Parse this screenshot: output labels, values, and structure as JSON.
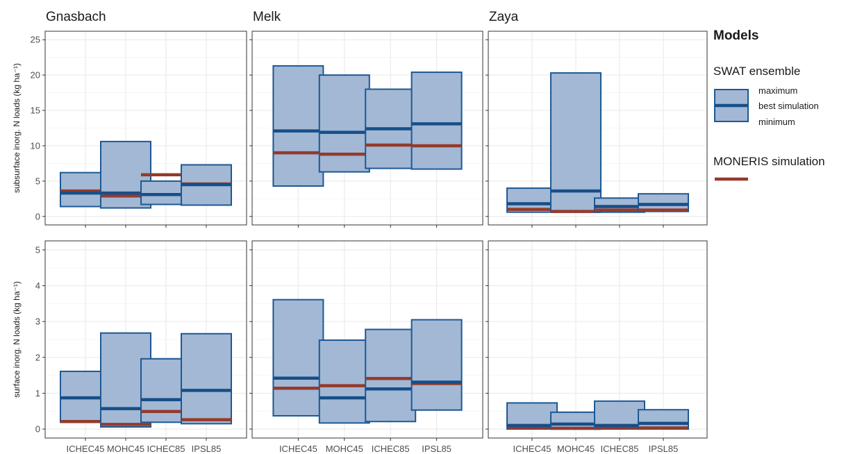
{
  "chart_data": {
    "type": "bar",
    "categories": [
      "ICHEC45",
      "MOHC45",
      "ICHEC85",
      "IPSL85"
    ],
    "columns": [
      "Gnasbach",
      "Melk",
      "Zaya"
    ],
    "rows": [
      {
        "ylabel": "subsurface inorg. N loads (kg ha⁻¹)",
        "ylim": [
          -1.2,
          26.2
        ],
        "yticks": [
          0,
          5,
          10,
          15,
          20,
          25
        ],
        "panels": [
          {
            "catchment": "Gnasbach",
            "swat_min": [
              1.4,
              1.2,
              1.7,
              1.6
            ],
            "swat_max": [
              6.2,
              10.6,
              5.0,
              7.3
            ],
            "swat_best": [
              3.3,
              3.3,
              3.1,
              4.5
            ],
            "moneris": [
              3.6,
              2.9,
              5.9,
              4.6
            ]
          },
          {
            "catchment": "Melk",
            "swat_min": [
              4.3,
              6.3,
              6.8,
              6.7
            ],
            "swat_max": [
              21.3,
              20.0,
              18.0,
              20.4
            ],
            "swat_best": [
              12.1,
              11.9,
              12.4,
              13.1
            ],
            "moneris": [
              9.0,
              8.8,
              10.1,
              10.0
            ]
          },
          {
            "catchment": "Zaya",
            "swat_min": [
              0.6,
              0.7,
              0.6,
              0.7
            ],
            "swat_max": [
              4.0,
              20.3,
              2.6,
              3.2
            ],
            "swat_best": [
              1.8,
              3.6,
              1.4,
              1.7
            ],
            "moneris": [
              1.0,
              0.7,
              0.9,
              0.9
            ]
          }
        ]
      },
      {
        "ylabel": "surface inorg. N loads (kg ha⁻¹)",
        "ylim": [
          -0.25,
          5.25
        ],
        "yticks": [
          0,
          1,
          2,
          3,
          4,
          5
        ],
        "panels": [
          {
            "catchment": "Gnasbach",
            "swat_min": [
              0.19,
              0.06,
              0.19,
              0.15
            ],
            "swat_max": [
              1.61,
              2.68,
              1.96,
              2.66
            ],
            "swat_best": [
              0.87,
              0.57,
              0.82,
              1.08
            ],
            "moneris": [
              0.21,
              0.13,
              0.49,
              0.26
            ]
          },
          {
            "catchment": "Melk",
            "swat_min": [
              0.37,
              0.17,
              0.21,
              0.53
            ],
            "swat_max": [
              3.61,
              2.48,
              2.78,
              3.05
            ],
            "swat_best": [
              1.42,
              0.87,
              1.12,
              1.31
            ],
            "moneris": [
              1.14,
              1.21,
              1.41,
              1.27
            ]
          },
          {
            "catchment": "Zaya",
            "swat_min": [
              0.0,
              0.0,
              0.0,
              0.0
            ],
            "swat_max": [
              0.73,
              0.47,
              0.78,
              0.54
            ],
            "swat_best": [
              0.1,
              0.14,
              0.1,
              0.16
            ],
            "moneris": [
              0.04,
              0.02,
              0.04,
              0.03
            ]
          }
        ]
      }
    ],
    "legend": {
      "title": "Models",
      "swat_title": "SWAT ensemble",
      "swat_max_label": "maximum",
      "swat_best_label": "best simulation",
      "swat_min_label": "minimum",
      "moneris_title": "MONERIS simulation",
      "placement": "right"
    },
    "colors": {
      "box_fill": "#a2b8d4",
      "box_stroke": "#1d5894",
      "best_line": "#164e88",
      "moneris_line": "#943a2c",
      "grid": "#ebebeb",
      "panel_border": "#333333",
      "tick": "#333333"
    },
    "grid": true
  }
}
